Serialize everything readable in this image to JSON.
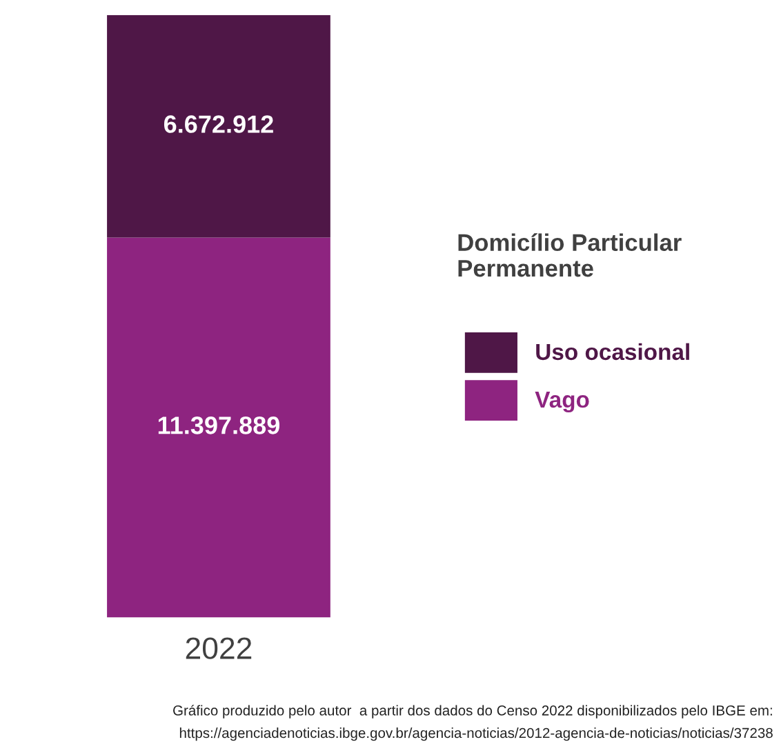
{
  "chart_data": {
    "type": "bar",
    "stacked": true,
    "categories": [
      "2022"
    ],
    "series": [
      {
        "name": "Vago",
        "color": "#8e2480",
        "values": [
          11397889
        ],
        "value_labels": [
          "11.397.889"
        ]
      },
      {
        "name": "Uso ocasional",
        "color": "#4f1747",
        "values": [
          6672912
        ],
        "value_labels": [
          "6.672.912"
        ]
      }
    ],
    "legend": "right",
    "legend_title": "Domicílio Particular Permanente",
    "annotations": [
      "Gráfico produzido pelo autor  a partir dos dados do Censo 2022 disponibilizados pelo IBGE em:",
      "https://agenciadenoticias.ibge.gov.br/agencia-noticias/2012-agencia-de-noticias/noticias/37238"
    ]
  }
}
